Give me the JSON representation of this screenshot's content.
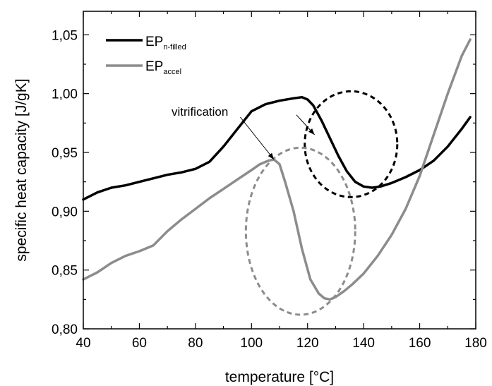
{
  "chart_data": {
    "type": "line",
    "xlabel": "temperature [°C]",
    "ylabel": "specific heat capacity [J/gK]",
    "xlim": [
      40,
      180
    ],
    "ylim": [
      0.8,
      1.07
    ],
    "x_ticks": [
      40,
      60,
      80,
      100,
      120,
      140,
      160,
      180
    ],
    "x_tick_labels": [
      "40",
      "60",
      "80",
      "100",
      "120",
      "140",
      "160",
      "180"
    ],
    "y_ticks": [
      0.8,
      0.85,
      0.9,
      0.95,
      1.0,
      1.05
    ],
    "y_tick_labels": [
      "0,80",
      "0,85",
      "0,90",
      "0,95",
      "1,00",
      "1,05"
    ],
    "grid": false,
    "legend_position": "top-left",
    "series": [
      {
        "name_main": "EP",
        "name_sub": "n-filled",
        "color": "#000000",
        "x": [
          40,
          45,
          50,
          55,
          60,
          65,
          70,
          75,
          80,
          85,
          90,
          95,
          100,
          105,
          110,
          115,
          118,
          120,
          122,
          125,
          128,
          131,
          134,
          137,
          140,
          143,
          146,
          150,
          155,
          160,
          165,
          170,
          175,
          178
        ],
        "y": [
          0.91,
          0.916,
          0.92,
          0.922,
          0.925,
          0.928,
          0.931,
          0.933,
          0.936,
          0.942,
          0.955,
          0.97,
          0.985,
          0.991,
          0.994,
          0.996,
          0.997,
          0.995,
          0.99,
          0.977,
          0.962,
          0.947,
          0.934,
          0.925,
          0.921,
          0.92,
          0.921,
          0.924,
          0.929,
          0.935,
          0.943,
          0.955,
          0.97,
          0.98
        ]
      },
      {
        "name_main": "EP",
        "name_sub": "accel",
        "color": "#8c8c8c",
        "x": [
          40,
          45,
          50,
          55,
          60,
          65,
          70,
          75,
          80,
          85,
          90,
          95,
          100,
          103,
          106,
          108,
          110,
          112,
          115,
          118,
          121,
          124,
          126,
          128,
          130,
          133,
          136,
          140,
          145,
          150,
          155,
          160,
          165,
          170,
          175,
          178
        ],
        "y": [
          0.842,
          0.848,
          0.856,
          0.862,
          0.866,
          0.871,
          0.883,
          0.893,
          0.902,
          0.911,
          0.919,
          0.927,
          0.935,
          0.94,
          0.943,
          0.944,
          0.94,
          0.925,
          0.9,
          0.868,
          0.842,
          0.83,
          0.826,
          0.825,
          0.827,
          0.832,
          0.838,
          0.847,
          0.862,
          0.88,
          0.902,
          0.93,
          0.965,
          1.0,
          1.032,
          1.046
        ]
      }
    ],
    "annotations": {
      "vitrification_label": "vitrification",
      "ellipses": [
        {
          "color": "#000000",
          "style": "dashed",
          "center_x": 135.5,
          "center_y": 0.957,
          "radius_x": 16.5,
          "radius_y": 0.045
        },
        {
          "color": "#8c8c8c",
          "style": "dashed",
          "center_x": 117.5,
          "center_y": 0.883,
          "radius_x": 19.5,
          "radius_y": 0.071
        }
      ],
      "arrows": [
        {
          "from_x": 116,
          "from_y": 0.982,
          "to_x": 122.5,
          "to_y": 0.965
        },
        {
          "from_x": 96,
          "from_y": 0.98,
          "to_x": 108,
          "to_y": 0.944
        }
      ]
    }
  }
}
